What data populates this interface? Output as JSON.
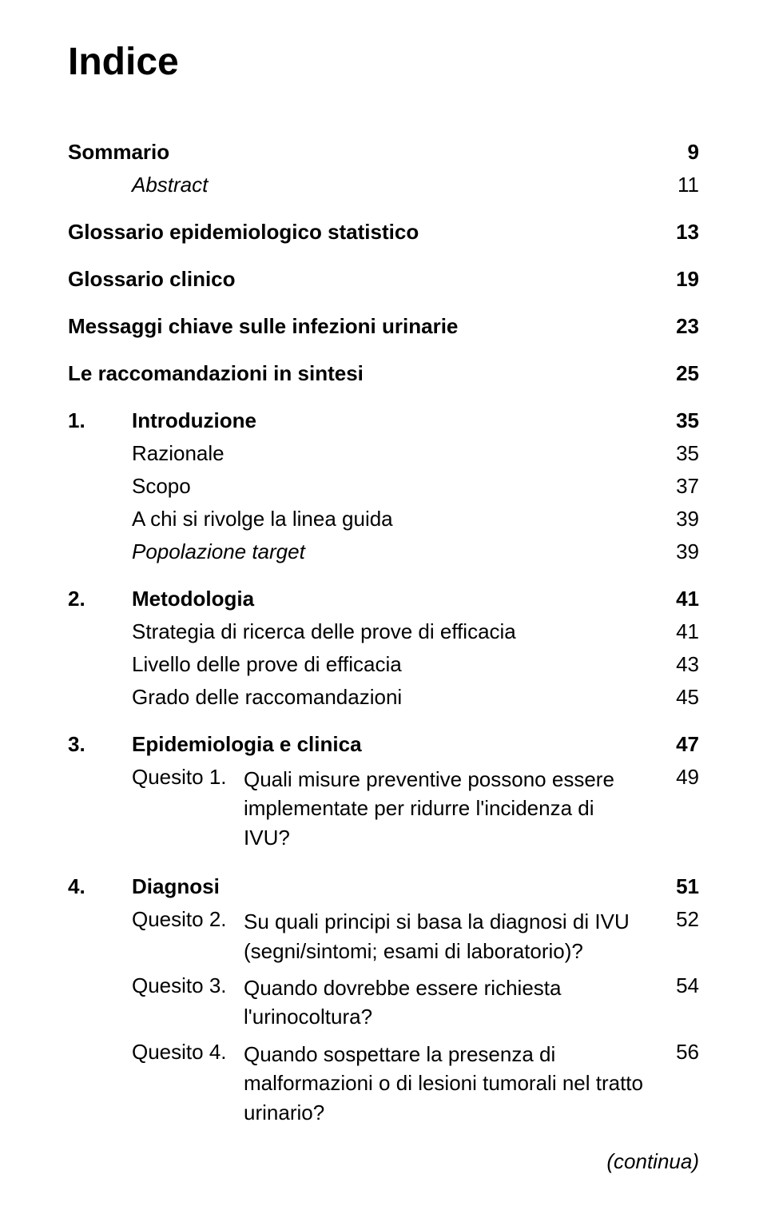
{
  "title": "Indice",
  "entries": {
    "sommario": {
      "label": "Sommario",
      "page": "9"
    },
    "abstract": {
      "label": "Abstract",
      "page": "11"
    },
    "glossario_epi": {
      "label": "Glossario epidemiologico statistico",
      "page": "13"
    },
    "glossario_clin": {
      "label": "Glossario clinico",
      "page": "19"
    },
    "messaggi": {
      "label": "Messaggi chiave sulle infezioni urinarie",
      "page": "23"
    },
    "raccomandazioni": {
      "label": "Le raccomandazioni in sintesi",
      "page": "25"
    },
    "sec1": {
      "num": "1.",
      "label": "Introduzione",
      "page": "35"
    },
    "sec1_razionale": {
      "label": "Razionale",
      "page": "35"
    },
    "sec1_scopo": {
      "label": "Scopo",
      "page": "37"
    },
    "sec1_rivolge": {
      "label": "A chi si rivolge la linea guida",
      "page": "39"
    },
    "sec1_pop": {
      "label": "Popolazione target",
      "page": "39"
    },
    "sec2": {
      "num": "2.",
      "label": "Metodologia",
      "page": "41"
    },
    "sec2_strategia": {
      "label": "Strategia di ricerca delle prove di efficacia",
      "page": "41"
    },
    "sec2_livello": {
      "label": "Livello delle prove di efficacia",
      "page": "43"
    },
    "sec2_grado": {
      "label": "Grado delle raccomandazioni",
      "page": "45"
    },
    "sec3": {
      "num": "3.",
      "label": "Epidemiologia e clinica",
      "page": "47"
    },
    "q1": {
      "label": "Quesito 1.",
      "text": "Quali misure preventive possono essere implementate per ridurre l'incidenza di IVU?",
      "page": "49"
    },
    "sec4": {
      "num": "4.",
      "label": "Diagnosi",
      "page": "51"
    },
    "q2": {
      "label": "Quesito 2.",
      "text": "Su quali principi si basa la diagnosi di IVU (segni/sintomi; esami di laboratorio)?",
      "page": "52"
    },
    "q3": {
      "label": "Quesito 3.",
      "text": "Quando dovrebbe essere richiesta l'urinocoltura?",
      "page": "54"
    },
    "q4": {
      "label": "Quesito 4.",
      "text": "Quando sospettare la presenza di malformazioni o di lesioni tumorali nel tratto urinario?",
      "page": "56"
    }
  },
  "continua": "(continua)",
  "style": {
    "background_color": "#ffffff",
    "text_color": "#000000",
    "title_fontsize": 48,
    "body_fontsize": 26,
    "font_family": "Verdana"
  }
}
